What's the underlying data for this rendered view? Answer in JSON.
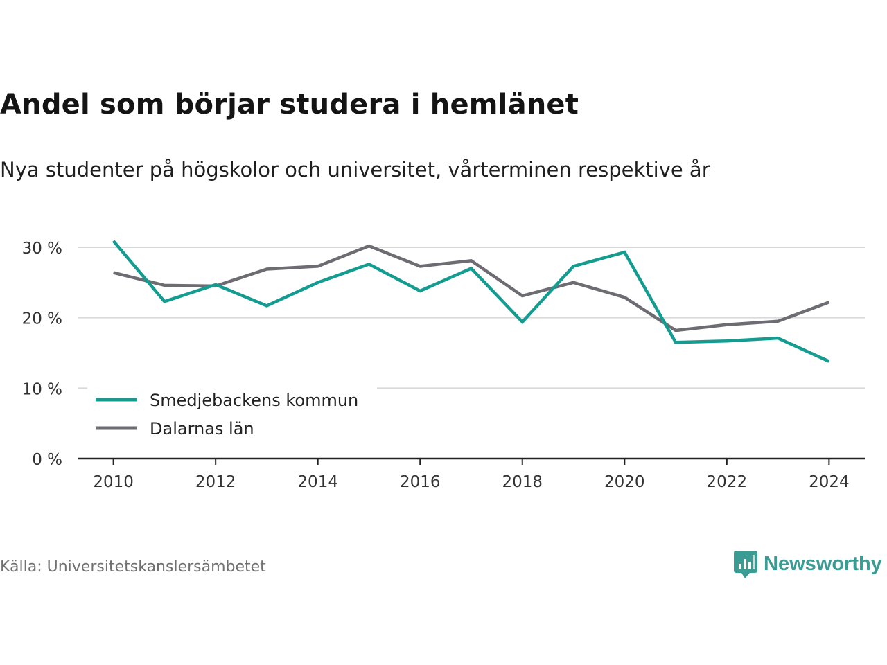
{
  "header": {
    "title": "Andel som börjar studera i hemlänet",
    "subtitle": "Nya studenter på högskolor och universitet, vårterminen respektive år"
  },
  "footer": {
    "source": "Källa: Universitetskanslersämbetet",
    "brand": "Newsworthy",
    "brand_icon": "newsworthy-logo-icon"
  },
  "colors": {
    "series_1": "#149c91",
    "series_2": "#6e6c72",
    "grid": "#d9d9d9",
    "axis": "#222222",
    "brand": "#3a9c93"
  },
  "chart_data": {
    "type": "line",
    "title": "Andel som börjar studera i hemlänet",
    "subtitle": "Nya studenter på högskolor och universitet, vårterminen respektive år",
    "xlabel": "",
    "ylabel": "",
    "x": [
      2010,
      2011,
      2012,
      2013,
      2014,
      2015,
      2016,
      2017,
      2018,
      2019,
      2020,
      2021,
      2022,
      2023,
      2024
    ],
    "x_tick_labels": [
      "2010",
      "2012",
      "2014",
      "2016",
      "2018",
      "2020",
      "2022",
      "2024"
    ],
    "x_tick_values": [
      2010,
      2012,
      2014,
      2016,
      2018,
      2020,
      2022,
      2024
    ],
    "y_tick_labels": [
      "0 %",
      "10 %",
      "20 %",
      "30 %"
    ],
    "y_tick_values": [
      0,
      10,
      20,
      30
    ],
    "xlim": [
      2009.3,
      2024.7
    ],
    "ylim": [
      0,
      30
    ],
    "grid": true,
    "legend_position": "bottom-left",
    "series": [
      {
        "name": "Smedjebackens kommun",
        "color": "#149c91",
        "values": [
          30.9,
          22.3,
          24.7,
          21.7,
          25.0,
          27.6,
          23.8,
          27.0,
          19.4,
          27.3,
          29.3,
          16.5,
          16.7,
          17.1,
          13.8
        ]
      },
      {
        "name": "Dalarnas län",
        "color": "#6e6c72",
        "values": [
          26.4,
          24.6,
          24.5,
          26.9,
          27.3,
          30.2,
          27.3,
          28.1,
          23.1,
          25.0,
          22.9,
          18.2,
          19.0,
          19.5,
          22.2
        ]
      }
    ]
  }
}
